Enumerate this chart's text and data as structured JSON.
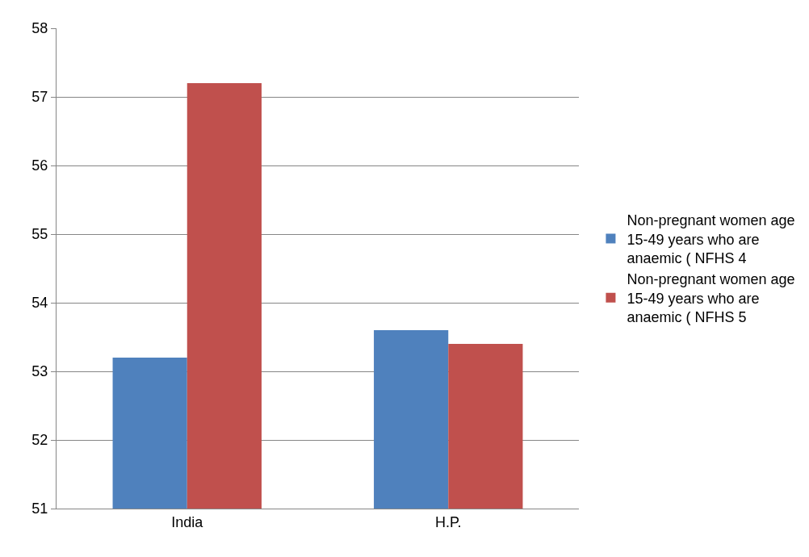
{
  "chart_data": {
    "type": "bar",
    "categories": [
      "India",
      "H.P."
    ],
    "series": [
      {
        "name": "Non-pregnant women age 15-49 years who are anaemic ( NFHS 4",
        "color": "#4f81bd",
        "values": [
          53.2,
          53.6
        ]
      },
      {
        "name": "Non-pregnant women age 15-49 years who are anaemic ( NFHS 5",
        "color": "#c0504d",
        "values": [
          57.2,
          53.4
        ]
      }
    ],
    "ylim": [
      51,
      58
    ],
    "yticks": [
      51,
      52,
      53,
      54,
      55,
      56,
      57,
      58
    ],
    "grid": "y",
    "legend": "right"
  }
}
